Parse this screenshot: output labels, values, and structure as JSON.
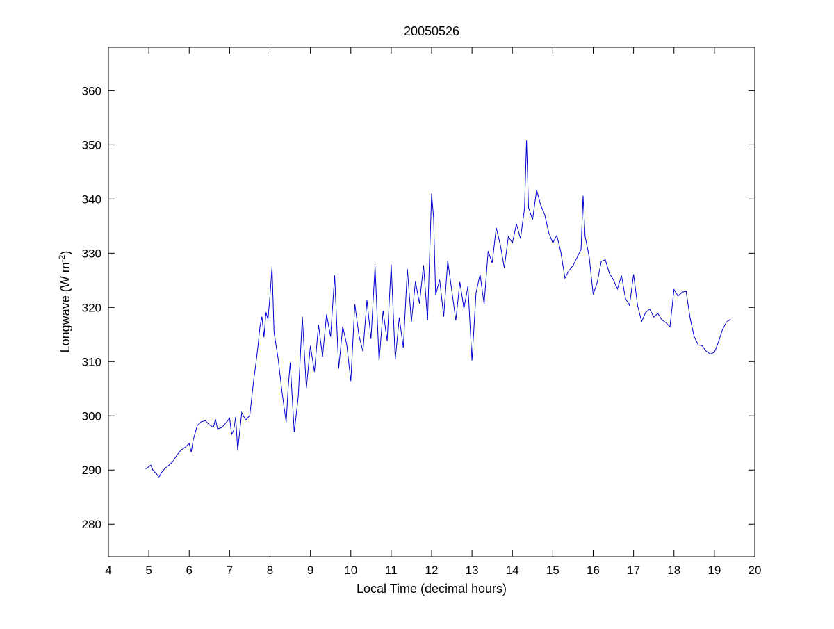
{
  "chart_data": {
    "type": "line",
    "title": "20050526",
    "xlabel": "Local Time (decimal hours)",
    "ylabel": "Longwave (W m",
    "ylabel_sup": "-2",
    "ylabel_end": ")",
    "xlim": [
      4,
      20
    ],
    "ylim": [
      274,
      368
    ],
    "xticks": [
      4,
      5,
      6,
      7,
      8,
      9,
      10,
      11,
      12,
      13,
      14,
      15,
      16,
      17,
      18,
      19,
      20
    ],
    "yticks": [
      280,
      290,
      300,
      310,
      320,
      330,
      340,
      350,
      360
    ],
    "grid": false,
    "line_color": "#0000cc",
    "series": [
      {
        "x": [
          4.92,
          5.0,
          5.05,
          5.1,
          5.15,
          5.2,
          5.25,
          5.3,
          5.4,
          5.5,
          5.6,
          5.7,
          5.8,
          5.9,
          6.0,
          6.05,
          6.1,
          6.2,
          6.3,
          6.4,
          6.5,
          6.6,
          6.65,
          6.7,
          6.8,
          6.9,
          7.0,
          7.05,
          7.1,
          7.15,
          7.2,
          7.3,
          7.4,
          7.5,
          7.55,
          7.6,
          7.65,
          7.7,
          7.75,
          7.8,
          7.85,
          7.9,
          7.95,
          8.0,
          8.05,
          8.1,
          8.2,
          8.3,
          8.4,
          8.45,
          8.5,
          8.6,
          8.7,
          8.8,
          8.9,
          9.0,
          9.1,
          9.2,
          9.3,
          9.4,
          9.5,
          9.6,
          9.7,
          9.8,
          9.9,
          10.0,
          10.1,
          10.2,
          10.3,
          10.4,
          10.5,
          10.6,
          10.7,
          10.8,
          10.9,
          11.0,
          11.1,
          11.2,
          11.3,
          11.4,
          11.5,
          11.6,
          11.7,
          11.8,
          11.9,
          12.0,
          12.05,
          12.1,
          12.2,
          12.3,
          12.4,
          12.5,
          12.6,
          12.7,
          12.8,
          12.9,
          13.0,
          13.1,
          13.2,
          13.3,
          13.4,
          13.5,
          13.6,
          13.7,
          13.8,
          13.9,
          14.0,
          14.1,
          14.2,
          14.3,
          14.35,
          14.4,
          14.5,
          14.6,
          14.7,
          14.8,
          14.9,
          15.0,
          15.1,
          15.2,
          15.3,
          15.4,
          15.5,
          15.6,
          15.7,
          15.75,
          15.8,
          15.9,
          16.0,
          16.1,
          16.2,
          16.3,
          16.4,
          16.5,
          16.6,
          16.7,
          16.8,
          16.9,
          17.0,
          17.1,
          17.2,
          17.3,
          17.4,
          17.5,
          17.6,
          17.7,
          17.8,
          17.9,
          18.0,
          18.1,
          18.2,
          18.3,
          18.4,
          18.5,
          18.6,
          18.7,
          18.8,
          18.9,
          19.0,
          19.1,
          19.2,
          19.3,
          19.4
        ],
        "y": [
          290.2,
          290.6,
          290.9,
          290.0,
          289.6,
          289.2,
          288.6,
          289.4,
          290.3,
          290.9,
          291.6,
          292.8,
          293.7,
          294.2,
          294.9,
          293.3,
          295.6,
          298.2,
          298.9,
          299.1,
          298.3,
          297.9,
          299.4,
          297.6,
          297.8,
          298.6,
          299.6,
          296.6,
          297.3,
          299.8,
          293.6,
          300.6,
          299.2,
          300.1,
          303.5,
          306.8,
          309.6,
          312.7,
          316.4,
          318.3,
          314.5,
          319.1,
          317.8,
          322.2,
          327.5,
          315.4,
          310.6,
          304.2,
          298.8,
          305.2,
          309.8,
          297.0,
          303.6,
          318.3,
          305.1,
          312.9,
          308.1,
          316.8,
          310.9,
          318.7,
          314.6,
          325.9,
          308.7,
          316.5,
          313.1,
          306.4,
          320.6,
          314.9,
          311.9,
          321.3,
          314.2,
          327.6,
          310.1,
          319.4,
          313.8,
          327.9,
          310.4,
          318.1,
          312.6,
          327.1,
          317.3,
          324.8,
          320.7,
          327.8,
          317.6,
          341.0,
          336.5,
          322.3,
          325.1,
          318.3,
          328.6,
          323.1,
          317.6,
          324.7,
          319.8,
          323.9,
          310.2,
          322.7,
          326.1,
          320.6,
          330.4,
          328.2,
          334.7,
          331.6,
          327.3,
          333.1,
          331.9,
          335.4,
          332.7,
          338.2,
          350.8,
          338.4,
          336.2,
          341.7,
          338.9,
          337.1,
          333.8,
          331.9,
          333.3,
          330.2,
          325.4,
          326.8,
          327.7,
          329.2,
          330.7,
          340.6,
          333.1,
          329.4,
          322.4,
          324.6,
          328.5,
          328.8,
          326.3,
          325.1,
          323.4,
          325.9,
          321.6,
          320.4,
          326.1,
          320.3,
          317.4,
          319.1,
          319.7,
          318.2,
          318.9,
          317.7,
          317.2,
          316.4,
          323.3,
          322.1,
          322.8,
          323.0,
          318.0,
          314.6,
          313.1,
          312.9,
          311.9,
          311.4,
          311.7,
          313.6,
          315.9,
          317.3,
          317.8
        ]
      }
    ]
  }
}
